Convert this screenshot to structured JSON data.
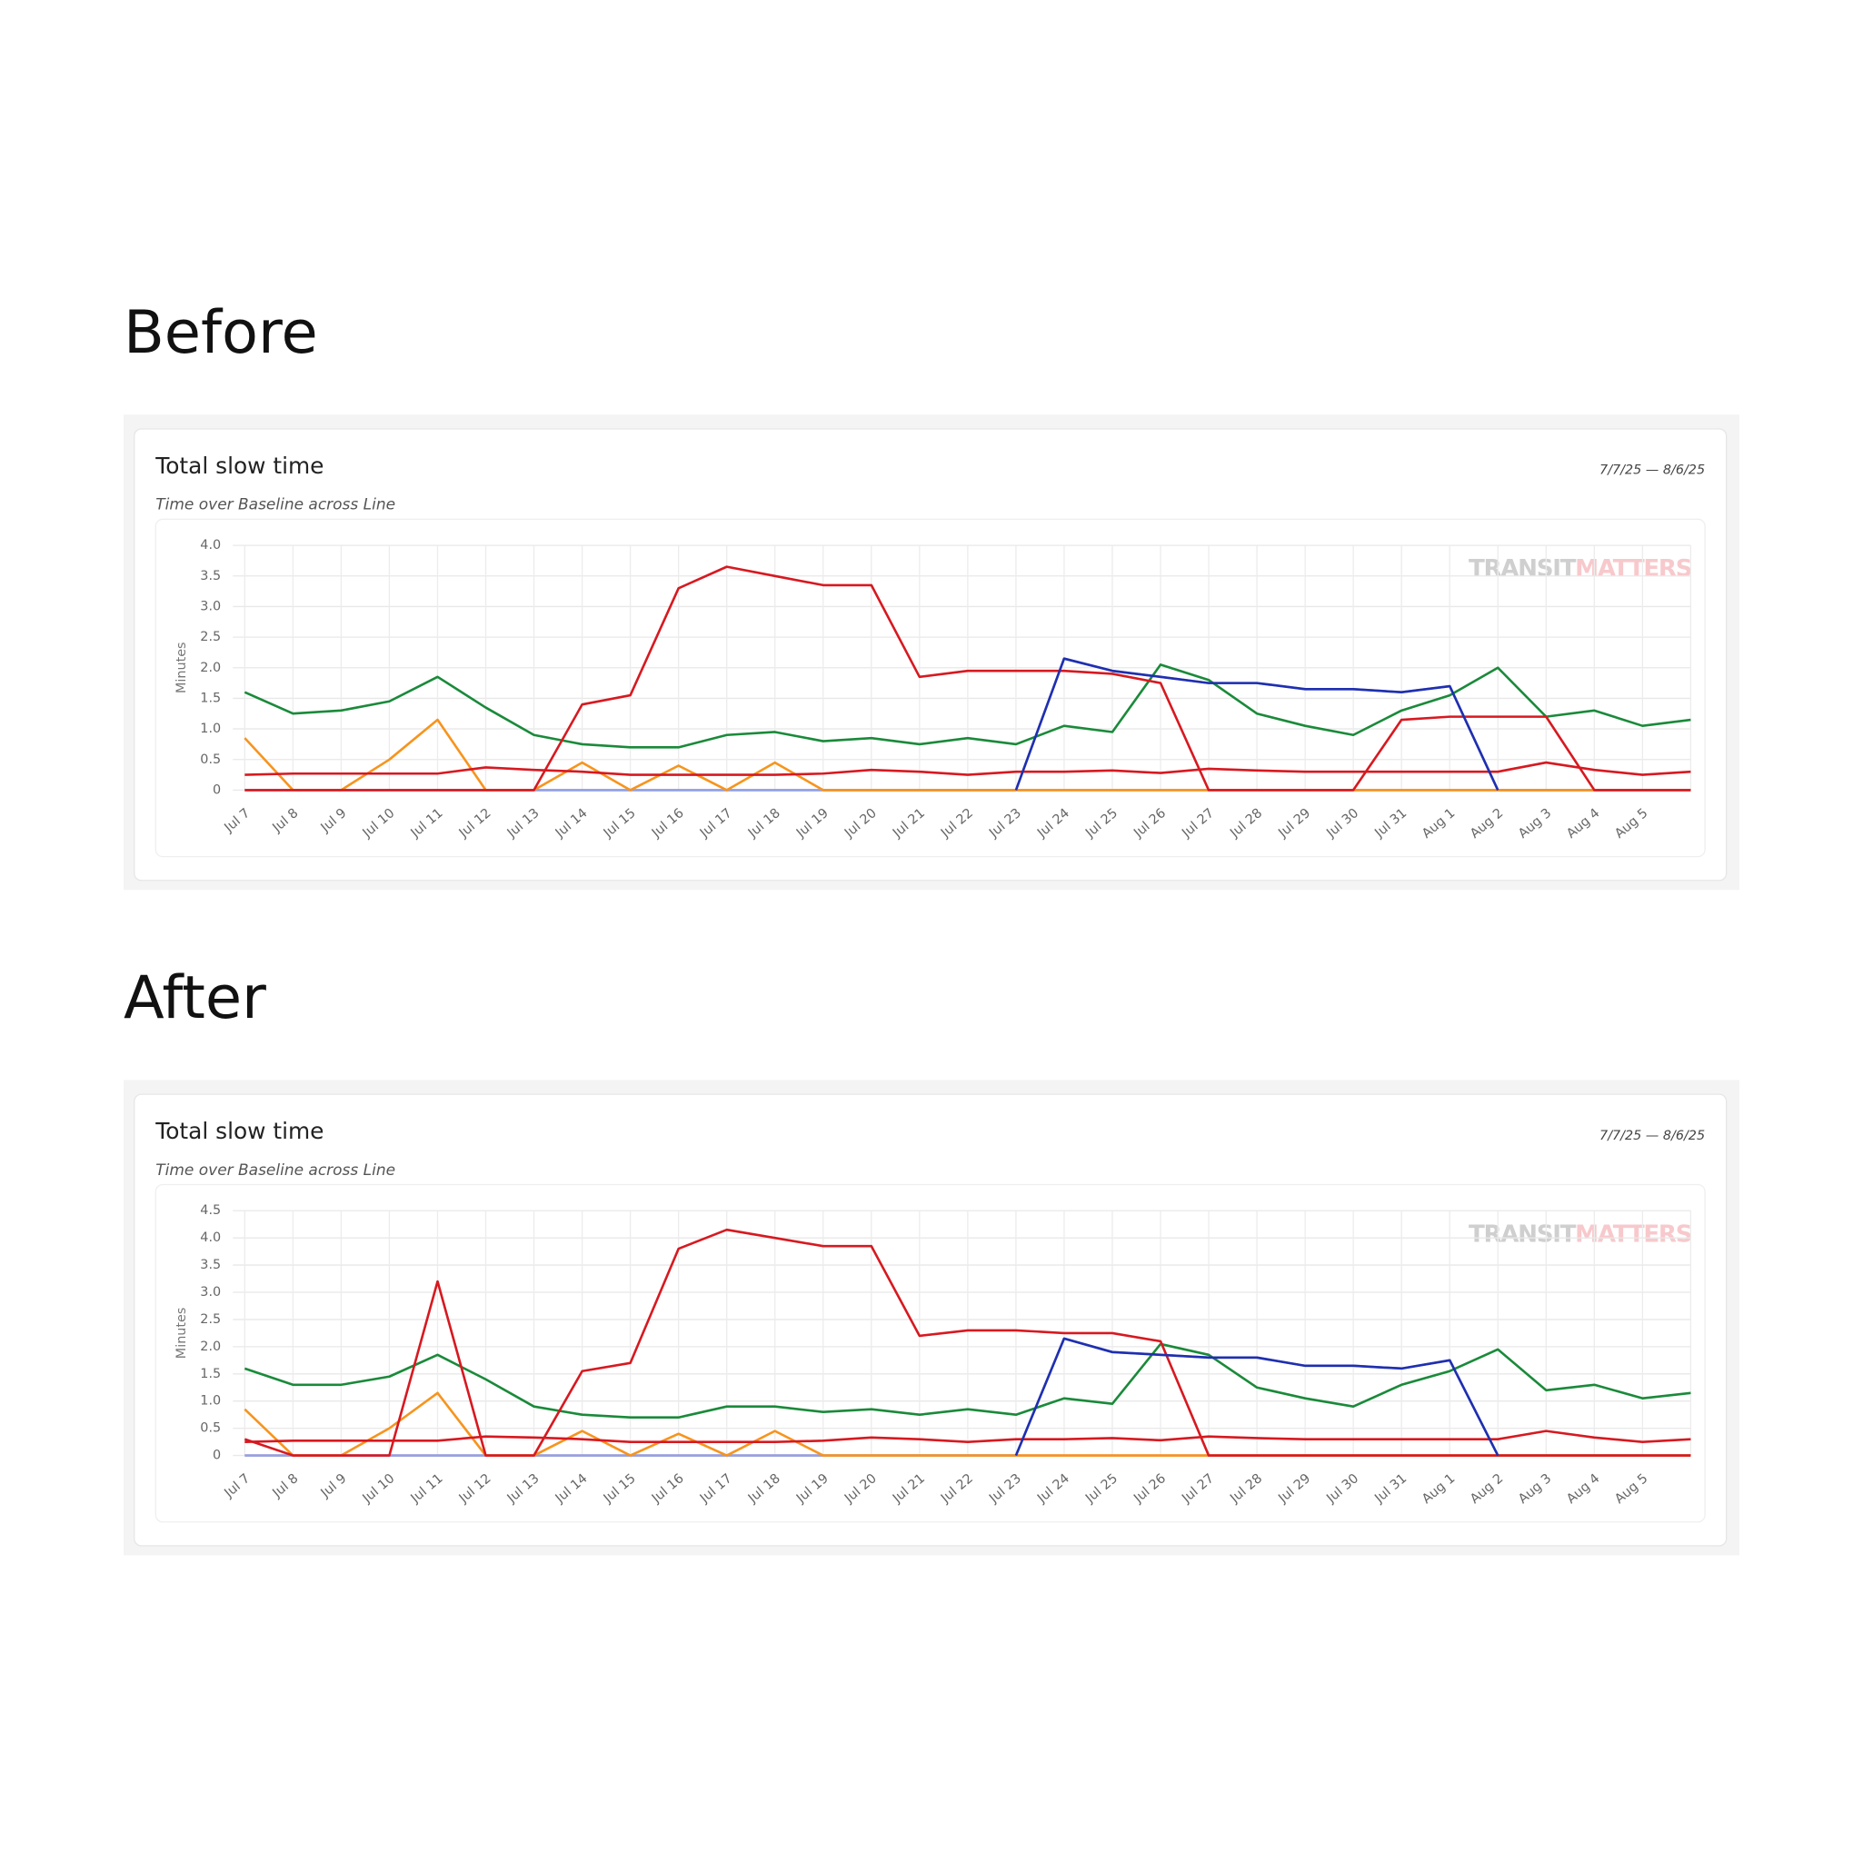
{
  "headings": [
    "Before",
    "After"
  ],
  "chart_data": [
    {
      "type": "line",
      "title": "Total slow time",
      "subtitle": "Time over Baseline across Line",
      "date_range": "7/7/25 — 8/6/25",
      "y_label": "Minutes",
      "watermark": [
        "TRANSIT",
        "MATTERS"
      ],
      "grid": true,
      "categories": [
        "Jul 7",
        "Jul 8",
        "Jul 9",
        "Jul 10",
        "Jul 11",
        "Jul 12",
        "Jul 13",
        "Jul 14",
        "Jul 15",
        "Jul 16",
        "Jul 17",
        "Jul 18",
        "Jul 19",
        "Jul 20",
        "Jul 21",
        "Jul 22",
        "Jul 23",
        "Jul 24",
        "Jul 25",
        "Jul 26",
        "Jul 27",
        "Jul 28",
        "Jul 29",
        "Jul 30",
        "Jul 31",
        "Aug 1",
        "Aug 2",
        "Aug 3",
        "Aug 4",
        "Aug 5",
        null
      ],
      "ylim": [
        0,
        4
      ],
      "yticks": [
        0,
        0.5,
        {
          "value": 1,
          "label": "1.0"
        },
        1.5,
        {
          "value": 2,
          "label": "2.0"
        },
        2.5,
        {
          "value": 3,
          "label": "3.0"
        },
        3.5,
        {
          "value": 4,
          "label": "4.0"
        }
      ],
      "series": [
        {
          "color": "#f3a0a8",
          "values": [
            0,
            0,
            0,
            0,
            0,
            0,
            0,
            0,
            0,
            0,
            0,
            0,
            0,
            0,
            0,
            0,
            0,
            0,
            0,
            0,
            0,
            0,
            0,
            0,
            0,
            0,
            0,
            0,
            0,
            0,
            0
          ]
        },
        {
          "color": "#8fa3e8",
          "values": [
            0,
            0,
            0,
            0,
            0,
            0,
            0,
            0,
            0,
            0,
            0,
            0,
            0,
            0,
            0,
            0,
            0,
            2.15,
            1.95,
            1.85,
            1.75,
            1.75,
            1.65,
            1.65,
            1.6,
            1.7,
            0,
            0,
            0,
            0,
            0
          ]
        },
        {
          "color": "#f7941d",
          "values": [
            0.85,
            0,
            0,
            0.5,
            1.15,
            0,
            0,
            0.45,
            0,
            0.4,
            0,
            0.45,
            0,
            0,
            0,
            0,
            0,
            0,
            0,
            0,
            0,
            0,
            0,
            0,
            0,
            0,
            0,
            0,
            0,
            0,
            0
          ]
        },
        {
          "color": "#d71920",
          "values": [
            0.25,
            0.27,
            0.27,
            0.27,
            0.27,
            0.37,
            0.33,
            0.3,
            0.25,
            0.25,
            0.25,
            0.25,
            0.27,
            0.33,
            0.3,
            0.25,
            0.3,
            0.3,
            0.32,
            0.28,
            0.35,
            0.32,
            0.3,
            0.3,
            0.3,
            0.3,
            0.3,
            0.45,
            0.33,
            0.25,
            0.3
          ]
        },
        {
          "color": "#1a8a3a",
          "values": [
            1.6,
            1.25,
            1.3,
            1.45,
            1.85,
            1.35,
            0.9,
            0.75,
            0.7,
            0.7,
            0.9,
            0.95,
            0.8,
            0.85,
            0.75,
            0.85,
            0.75,
            1.05,
            0.95,
            2.05,
            1.8,
            1.25,
            1.05,
            0.9,
            1.3,
            1.55,
            2.0,
            1.2,
            1.3,
            1.05,
            1.15
          ]
        },
        {
          "color": "#d71920",
          "values": [
            0,
            0,
            0,
            0,
            0,
            0,
            0,
            1.4,
            1.55,
            3.3,
            3.65,
            3.5,
            3.35,
            3.35,
            1.85,
            1.95,
            1.95,
            1.95,
            1.9,
            1.75,
            0,
            0,
            0,
            0,
            1.15,
            1.2,
            1.2,
            1.2,
            0,
            0,
            0
          ]
        },
        {
          "color": "#1f2fb0",
          "values": [
            null,
            null,
            null,
            null,
            null,
            null,
            null,
            null,
            null,
            null,
            null,
            null,
            null,
            null,
            null,
            null,
            0,
            2.15,
            1.95,
            1.85,
            1.75,
            1.75,
            1.65,
            1.65,
            1.6,
            1.7,
            0,
            null,
            null,
            null,
            null
          ]
        }
      ]
    },
    {
      "type": "line",
      "title": "Total slow time",
      "subtitle": "Time over Baseline across Line",
      "date_range": "7/7/25 — 8/6/25",
      "y_label": "Minutes",
      "watermark": [
        "TRANSIT",
        "MATTERS"
      ],
      "grid": true,
      "categories": [
        "Jul 7",
        "Jul 8",
        "Jul 9",
        "Jul 10",
        "Jul 11",
        "Jul 12",
        "Jul 13",
        "Jul 14",
        "Jul 15",
        "Jul 16",
        "Jul 17",
        "Jul 18",
        "Jul 19",
        "Jul 20",
        "Jul 21",
        "Jul 22",
        "Jul 23",
        "Jul 24",
        "Jul 25",
        "Jul 26",
        "Jul 27",
        "Jul 28",
        "Jul 29",
        "Jul 30",
        "Jul 31",
        "Aug 1",
        "Aug 2",
        "Aug 3",
        "Aug 4",
        "Aug 5",
        null
      ],
      "ylim": [
        0,
        4.5
      ],
      "yticks": [
        0,
        0.5,
        {
          "value": 1,
          "label": "1.0"
        },
        1.5,
        {
          "value": 2,
          "label": "2.0"
        },
        2.5,
        {
          "value": 3,
          "label": "3.0"
        },
        3.5,
        {
          "value": 4,
          "label": "4.0"
        },
        4.5
      ],
      "series": [
        {
          "color": "#f3a0a8",
          "values": [
            0,
            0,
            0,
            0,
            0,
            0,
            0,
            0,
            0,
            0,
            0,
            0,
            0,
            0,
            0,
            0,
            0,
            0,
            0,
            0,
            0,
            0,
            0,
            0,
            0,
            0,
            0,
            0,
            0,
            0,
            0
          ]
        },
        {
          "color": "#8fa3e8",
          "values": [
            0,
            0,
            0,
            0,
            0,
            0,
            0,
            0,
            0,
            0,
            0,
            0,
            0,
            0,
            0,
            0,
            0,
            2.15,
            1.9,
            1.85,
            1.8,
            1.8,
            1.65,
            1.65,
            1.6,
            1.75,
            0,
            0,
            0,
            0,
            0
          ]
        },
        {
          "color": "#f7941d",
          "values": [
            0.85,
            0,
            0,
            0.5,
            1.15,
            0,
            0,
            0.45,
            0,
            0.4,
            0,
            0.45,
            0,
            0,
            0,
            0,
            0,
            0,
            0,
            0,
            0,
            0,
            0,
            0,
            0,
            0,
            0,
            0,
            0,
            0,
            0
          ]
        },
        {
          "color": "#d71920",
          "values": [
            0.25,
            0.27,
            0.27,
            0.27,
            0.27,
            0.35,
            0.33,
            0.3,
            0.25,
            0.25,
            0.25,
            0.25,
            0.27,
            0.33,
            0.3,
            0.25,
            0.3,
            0.3,
            0.32,
            0.28,
            0.35,
            0.32,
            0.3,
            0.3,
            0.3,
            0.3,
            0.3,
            0.45,
            0.33,
            0.25,
            0.3
          ]
        },
        {
          "color": "#1a8a3a",
          "values": [
            1.6,
            1.3,
            1.3,
            1.45,
            1.85,
            1.4,
            0.9,
            0.75,
            0.7,
            0.7,
            0.9,
            0.9,
            0.8,
            0.85,
            0.75,
            0.85,
            0.75,
            1.05,
            0.95,
            2.05,
            1.85,
            1.25,
            1.05,
            0.9,
            1.3,
            1.55,
            1.95,
            1.2,
            1.3,
            1.05,
            1.15
          ]
        },
        {
          "color": "#d71920",
          "values": [
            0.3,
            0,
            0,
            0,
            3.2,
            0,
            0,
            1.55,
            1.7,
            3.8,
            4.15,
            4.0,
            3.85,
            3.85,
            2.2,
            2.3,
            2.3,
            2.25,
            2.25,
            2.1,
            0,
            0,
            0,
            0,
            0,
            0,
            0,
            0,
            0,
            0,
            0
          ]
        },
        {
          "color": "#1f2fb0",
          "values": [
            null,
            null,
            null,
            null,
            null,
            null,
            null,
            null,
            null,
            null,
            null,
            null,
            null,
            null,
            null,
            null,
            0,
            2.15,
            1.9,
            1.85,
            1.8,
            1.8,
            1.65,
            1.65,
            1.6,
            1.75,
            0,
            null,
            null,
            null,
            null
          ]
        }
      ]
    }
  ]
}
